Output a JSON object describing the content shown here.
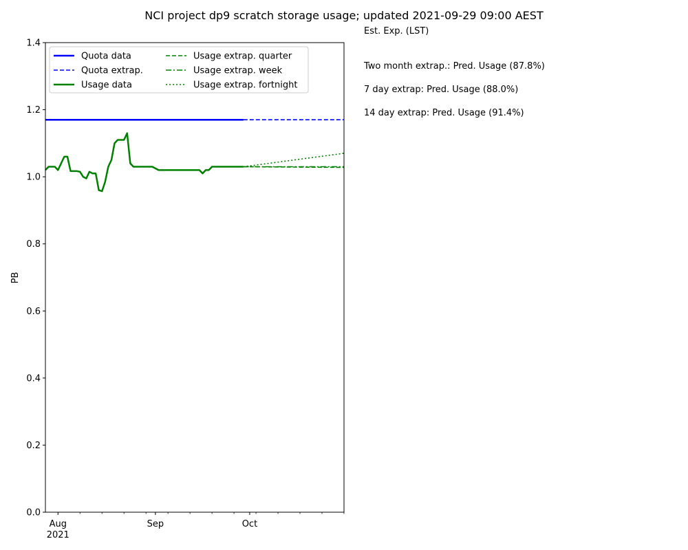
{
  "chart_data": {
    "type": "line",
    "title": "NCI project dp9 scratch storage usage; updated 2021-09-29 09:00 AEST",
    "ylabel": "PB",
    "xlabel": "",
    "ylim": [
      0.0,
      1.4
    ],
    "xlim": [
      "2021-07-28",
      "2021-10-31"
    ],
    "yticks": [
      "0.0",
      "0.2",
      "0.4",
      "0.6",
      "0.8",
      "1.0",
      "1.2",
      "1.4"
    ],
    "xticks": [
      {
        "date": "2021-08-01",
        "label": "Aug",
        "sublabel": "2021"
      },
      {
        "date": "2021-09-01",
        "label": "Sep",
        "sublabel": ""
      },
      {
        "date": "2021-10-01",
        "label": "Oct",
        "sublabel": ""
      }
    ],
    "xminor": [
      "2021-08-08",
      "2021-08-15",
      "2021-08-22",
      "2021-08-29",
      "2021-09-05",
      "2021-09-12",
      "2021-09-19",
      "2021-09-26",
      "2021-10-03",
      "2021-10-10",
      "2021-10-17",
      "2021-10-24",
      "2021-10-31"
    ],
    "legend": {
      "location": "top-left",
      "columns": 2
    },
    "series": [
      {
        "name": "Quota data",
        "color": "#0000ff",
        "style": "solid",
        "points": [
          [
            "2021-07-28",
            1.17
          ],
          [
            "2021-09-29",
            1.17
          ]
        ]
      },
      {
        "name": "Quota extrap.",
        "color": "#0000ff",
        "style": "dashed",
        "points": [
          [
            "2021-09-29",
            1.17
          ],
          [
            "2021-10-31",
            1.17
          ]
        ]
      },
      {
        "name": "Usage data",
        "color": "#008000",
        "style": "solid",
        "points": [
          [
            "2021-07-28",
            1.02
          ],
          [
            "2021-07-29",
            1.03
          ],
          [
            "2021-07-31",
            1.03
          ],
          [
            "2021-08-01",
            1.02
          ],
          [
            "2021-08-03",
            1.06
          ],
          [
            "2021-08-04",
            1.06
          ],
          [
            "2021-08-05",
            1.017
          ],
          [
            "2021-08-07",
            1.017
          ],
          [
            "2021-08-08",
            1.015
          ],
          [
            "2021-08-09",
            1.0
          ],
          [
            "2021-08-10",
            0.995
          ],
          [
            "2021-08-11",
            1.015
          ],
          [
            "2021-08-12",
            1.01
          ],
          [
            "2021-08-13",
            1.01
          ],
          [
            "2021-08-14",
            0.96
          ],
          [
            "2021-08-15",
            0.957
          ],
          [
            "2021-08-16",
            0.985
          ],
          [
            "2021-08-17",
            1.03
          ],
          [
            "2021-08-18",
            1.05
          ],
          [
            "2021-08-19",
            1.1
          ],
          [
            "2021-08-20",
            1.11
          ],
          [
            "2021-08-22",
            1.11
          ],
          [
            "2021-08-23",
            1.13
          ],
          [
            "2021-08-24",
            1.04
          ],
          [
            "2021-08-25",
            1.03
          ],
          [
            "2021-08-31",
            1.03
          ],
          [
            "2021-09-02",
            1.02
          ],
          [
            "2021-09-15",
            1.02
          ],
          [
            "2021-09-16",
            1.01
          ],
          [
            "2021-09-17",
            1.02
          ],
          [
            "2021-09-18",
            1.02
          ],
          [
            "2021-09-19",
            1.03
          ],
          [
            "2021-09-29",
            1.03
          ]
        ]
      },
      {
        "name": "Usage extrap. quarter",
        "color": "#008000",
        "style": "dashed",
        "points": [
          [
            "2021-09-29",
            1.03
          ],
          [
            "2021-10-31",
            1.028
          ]
        ]
      },
      {
        "name": "Usage extrap. week",
        "color": "#008000",
        "style": "dashdot",
        "points": [
          [
            "2021-09-29",
            1.03
          ],
          [
            "2021-10-31",
            1.03
          ]
        ]
      },
      {
        "name": "Usage extrap. fortnight",
        "color": "#008000",
        "style": "dotted",
        "points": [
          [
            "2021-09-29",
            1.03
          ],
          [
            "2021-10-31",
            1.07
          ]
        ]
      }
    ]
  },
  "side_panel": {
    "heading": "Est. Exp. (LST)",
    "lines": [
      "Two month extrap.: Pred. Usage (87.8%)",
      "7 day extrap: Pred. Usage (88.0%)",
      "14 day extrap: Pred. Usage (91.4%)"
    ]
  }
}
